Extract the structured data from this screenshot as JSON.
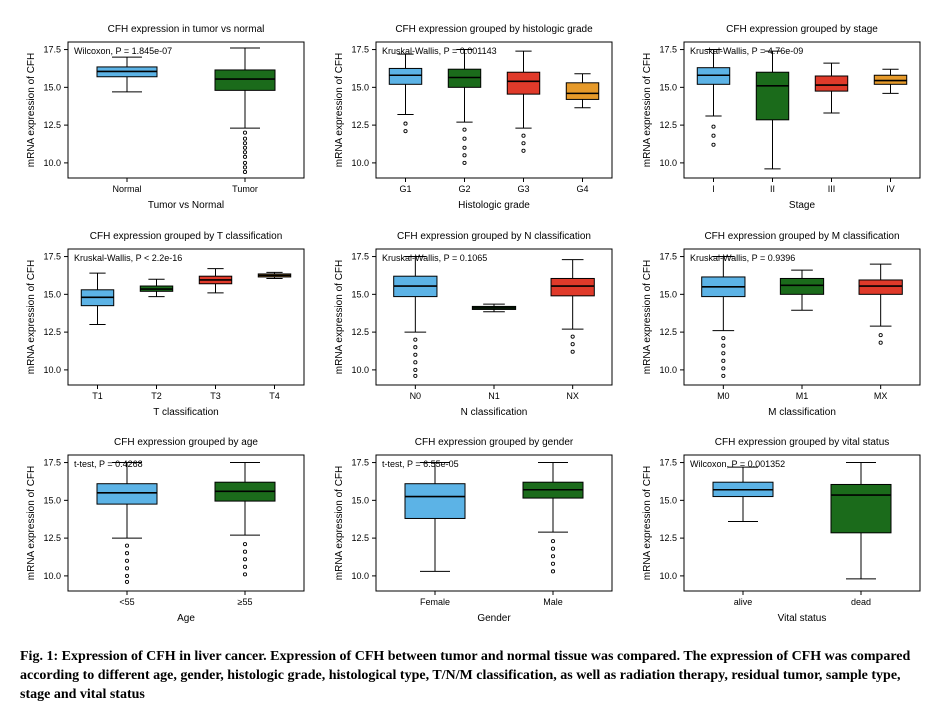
{
  "figure": {
    "caption": "Fig. 1: Expression of CFH in liver cancer. Expression of CFH between tumor and normal tissue was compared. The expression of CFH was compared according to different age, gender, histologic grade, histological type, T/N/M classification, as well as radiation therapy, residual tumor, sample type, stage and vital status",
    "ylabel": "mRNA expression of CFH",
    "ylim": [
      9.0,
      18.0
    ],
    "yticks": [
      10.0,
      12.5,
      15.0,
      17.5
    ],
    "axis_color": "#000000",
    "background_color": "#ffffff",
    "box_border_color": "#000000",
    "title_fontsize": 10,
    "axis_label_fontsize": 10,
    "tick_fontsize": 9,
    "stat_fontsize": 9,
    "colors": {
      "c1": "#5cb3e6",
      "c2": "#1b6b1b",
      "c3": "#e03a2a",
      "c4": "#e69a2a"
    }
  },
  "panels": [
    {
      "title": "CFH expression in tumor vs normal",
      "xlabel": "Tumor vs Normal",
      "stat": "Wilcoxon, P = 1.845e-07",
      "boxes": [
        {
          "label": "Normal",
          "color": "c1",
          "min": 14.7,
          "q1": 15.7,
          "med": 16.05,
          "q3": 16.35,
          "max": 17.0,
          "outliers": []
        },
        {
          "label": "Tumor",
          "color": "c2",
          "min": 12.3,
          "q1": 14.8,
          "med": 15.55,
          "q3": 16.15,
          "max": 17.6,
          "outliers": [
            12.0,
            11.6,
            11.3,
            11.0,
            10.7,
            10.4,
            10.0,
            9.7,
            9.4
          ]
        }
      ]
    },
    {
      "title": "CFH expression grouped by histologic grade",
      "xlabel": "Histologic grade",
      "stat": "Kruskal-Wallis, P = 0.001143",
      "boxes": [
        {
          "label": "G1",
          "color": "c1",
          "min": 13.2,
          "q1": 15.2,
          "med": 15.8,
          "q3": 16.25,
          "max": 17.2,
          "outliers": [
            12.6,
            12.1
          ]
        },
        {
          "label": "G2",
          "color": "c2",
          "min": 12.7,
          "q1": 15.0,
          "med": 15.65,
          "q3": 16.2,
          "max": 17.5,
          "outliers": [
            12.2,
            11.6,
            11.0,
            10.5,
            10.0
          ]
        },
        {
          "label": "G3",
          "color": "c3",
          "min": 12.3,
          "q1": 14.55,
          "med": 15.4,
          "q3": 16.0,
          "max": 17.4,
          "outliers": [
            11.8,
            11.3,
            10.8
          ]
        },
        {
          "label": "G4",
          "color": "c4",
          "min": 13.65,
          "q1": 14.2,
          "med": 14.6,
          "q3": 15.3,
          "max": 15.9,
          "outliers": []
        }
      ]
    },
    {
      "title": "CFH expression grouped by stage",
      "xlabel": "Stage",
      "stat": "Kruskal-Wallis, P = 4.76e-09",
      "boxes": [
        {
          "label": "I",
          "color": "c1",
          "min": 13.1,
          "q1": 15.2,
          "med": 15.8,
          "q3": 16.3,
          "max": 17.5,
          "outliers": [
            12.4,
            11.8,
            11.2
          ]
        },
        {
          "label": "II",
          "color": "c2",
          "min": 9.6,
          "q1": 12.85,
          "med": 15.1,
          "q3": 16.0,
          "max": 17.4,
          "outliers": []
        },
        {
          "label": "III",
          "color": "c3",
          "min": 13.3,
          "q1": 14.75,
          "med": 15.15,
          "q3": 15.75,
          "max": 16.6,
          "outliers": []
        },
        {
          "label": "IV",
          "color": "c4",
          "min": 14.6,
          "q1": 15.2,
          "med": 15.45,
          "q3": 15.8,
          "max": 16.2,
          "outliers": []
        }
      ]
    },
    {
      "title": "CFH expression grouped by T classification",
      "xlabel": "T classification",
      "stat": "Kruskal-Wallis, P < 2.2e-16",
      "boxes": [
        {
          "label": "T1",
          "color": "c1",
          "min": 13.0,
          "q1": 14.25,
          "med": 14.8,
          "q3": 15.3,
          "max": 16.4,
          "outliers": []
        },
        {
          "label": "T2",
          "color": "c2",
          "min": 14.85,
          "q1": 15.2,
          "med": 15.35,
          "q3": 15.55,
          "max": 16.0,
          "outliers": []
        },
        {
          "label": "T3",
          "color": "c3",
          "min": 15.1,
          "q1": 15.7,
          "med": 15.95,
          "q3": 16.2,
          "max": 16.7,
          "outliers": []
        },
        {
          "label": "T4",
          "color": "c4",
          "min": 16.05,
          "q1": 16.15,
          "med": 16.25,
          "q3": 16.35,
          "max": 16.45,
          "outliers": []
        }
      ]
    },
    {
      "title": "CFH expression grouped by N classification",
      "xlabel": "N classification",
      "stat": "Kruskal-Wallis, P = 0.1065",
      "boxes": [
        {
          "label": "N0",
          "color": "c1",
          "min": 12.5,
          "q1": 14.85,
          "med": 15.55,
          "q3": 16.2,
          "max": 17.5,
          "outliers": [
            12.0,
            11.5,
            11.0,
            10.5,
            10.0,
            9.6
          ]
        },
        {
          "label": "N1",
          "color": "c2",
          "min": 13.85,
          "q1": 14.0,
          "med": 14.1,
          "q3": 14.2,
          "max": 14.35,
          "outliers": []
        },
        {
          "label": "NX",
          "color": "c3",
          "min": 12.7,
          "q1": 14.9,
          "med": 15.55,
          "q3": 16.05,
          "max": 17.3,
          "outliers": [
            12.2,
            11.7,
            11.2
          ]
        }
      ]
    },
    {
      "title": "CFH expression grouped by M classification",
      "xlabel": "M classification",
      "stat": "Kruskal-Wallis, P = 0.9396",
      "boxes": [
        {
          "label": "M0",
          "color": "c1",
          "min": 12.6,
          "q1": 14.85,
          "med": 15.5,
          "q3": 16.15,
          "max": 17.5,
          "outliers": [
            12.1,
            11.6,
            11.1,
            10.6,
            10.1,
            9.6
          ]
        },
        {
          "label": "M1",
          "color": "c2",
          "min": 13.95,
          "q1": 15.0,
          "med": 15.6,
          "q3": 16.05,
          "max": 16.6,
          "outliers": []
        },
        {
          "label": "MX",
          "color": "c3",
          "min": 12.9,
          "q1": 15.0,
          "med": 15.55,
          "q3": 15.95,
          "max": 17.0,
          "outliers": [
            12.3,
            11.8
          ]
        }
      ]
    },
    {
      "title": "CFH expression grouped by age",
      "xlabel": "Age",
      "stat": "t-test, P = 0.4268",
      "boxes": [
        {
          "label": "<55",
          "color": "c1",
          "min": 12.5,
          "q1": 14.75,
          "med": 15.5,
          "q3": 16.1,
          "max": 17.5,
          "outliers": [
            12.0,
            11.5,
            11.0,
            10.5,
            10.0,
            9.6
          ]
        },
        {
          "label": "≥55",
          "color": "c2",
          "min": 12.7,
          "q1": 14.95,
          "med": 15.6,
          "q3": 16.2,
          "max": 17.5,
          "outliers": [
            12.1,
            11.6,
            11.1,
            10.6,
            10.1
          ]
        }
      ]
    },
    {
      "title": "CFH expression grouped by gender",
      "xlabel": "Gender",
      "stat": "t-test, P = 6.55e-05",
      "boxes": [
        {
          "label": "Female",
          "color": "c1",
          "min": 10.3,
          "q1": 13.8,
          "med": 15.25,
          "q3": 16.1,
          "max": 17.5,
          "outliers": []
        },
        {
          "label": "Male",
          "color": "c2",
          "min": 12.9,
          "q1": 15.15,
          "med": 15.7,
          "q3": 16.2,
          "max": 17.5,
          "outliers": [
            12.3,
            11.8,
            11.3,
            10.8,
            10.3
          ]
        }
      ]
    },
    {
      "title": "CFH expression grouped by vital status",
      "xlabel": "Vital status",
      "stat": "Wilcoxon, P = 0.001352",
      "boxes": [
        {
          "label": "alive",
          "color": "c1",
          "min": 13.6,
          "q1": 15.25,
          "med": 15.7,
          "q3": 16.2,
          "max": 17.2,
          "outliers": []
        },
        {
          "label": "dead",
          "color": "c2",
          "min": 9.8,
          "q1": 12.85,
          "med": 15.35,
          "q3": 16.05,
          "max": 17.5,
          "outliers": []
        }
      ]
    }
  ]
}
